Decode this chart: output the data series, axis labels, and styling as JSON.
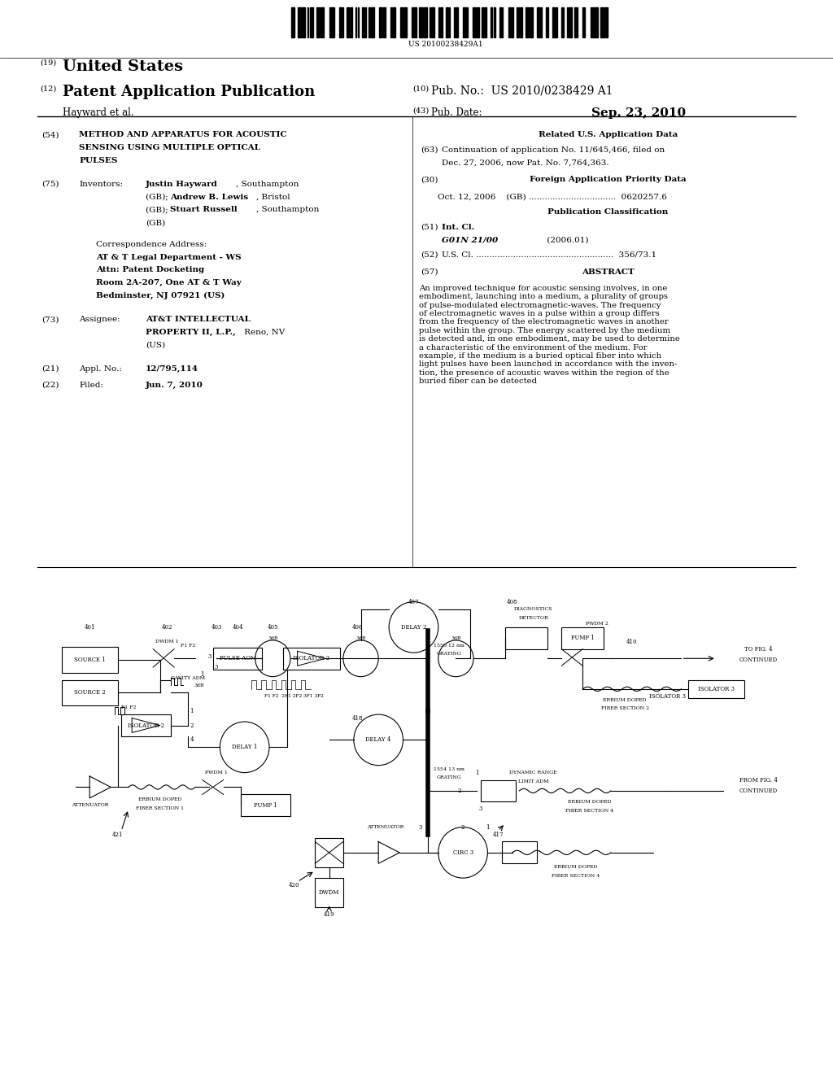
{
  "bg_color": "#ffffff",
  "page_width": 10.24,
  "page_height": 13.2,
  "barcode_text": "US 20100238429A1",
  "header": {
    "num19": "(19)",
    "united_states": "United States",
    "num12": "(12)",
    "patent_app": "Patent Application Publication",
    "hayward": "Hayward et al.",
    "num10": "(10)",
    "pub_no_label": "Pub. No.:",
    "pub_no": "US 2010/0238429 A1",
    "num43": "(43)",
    "pub_date_label": "Pub. Date:",
    "pub_date": "Sep. 23, 2010"
  },
  "left_col": {
    "num54": "(54)",
    "num75": "(75)",
    "num73": "(73)",
    "num21": "(21)",
    "num22": "(22)"
  },
  "right_col": {
    "related_header": "Related U.S. Application Data",
    "num63": "(63)",
    "num30": "(30)",
    "foreign_header": "Foreign Application Priority Data",
    "pub_class_header": "Publication Classification",
    "num51": "(51)",
    "num52": "(52)",
    "num57": "(57)",
    "abstract_header": "ABSTRACT"
  }
}
